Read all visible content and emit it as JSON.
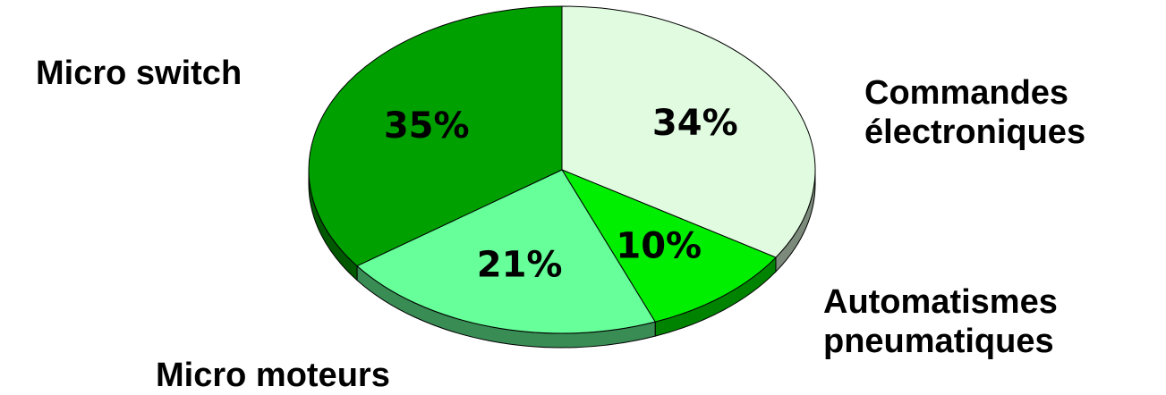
{
  "chart_data": {
    "type": "pie",
    "style": "3d",
    "title": "",
    "slices": [
      {
        "label": "Commandes\nélectroniques",
        "value": 34,
        "value_label": "34%",
        "color": "#e0fbe0"
      },
      {
        "label": "Automatismes\npneumatiques",
        "value": 10,
        "value_label": "10%",
        "color": "#00ee00"
      },
      {
        "label": "Micro moteurs",
        "value": 21,
        "value_label": "21%",
        "color": "#66ff99"
      },
      {
        "label": "Micro switch",
        "value": 35,
        "value_label": "35%",
        "color": "#00a000"
      }
    ]
  }
}
